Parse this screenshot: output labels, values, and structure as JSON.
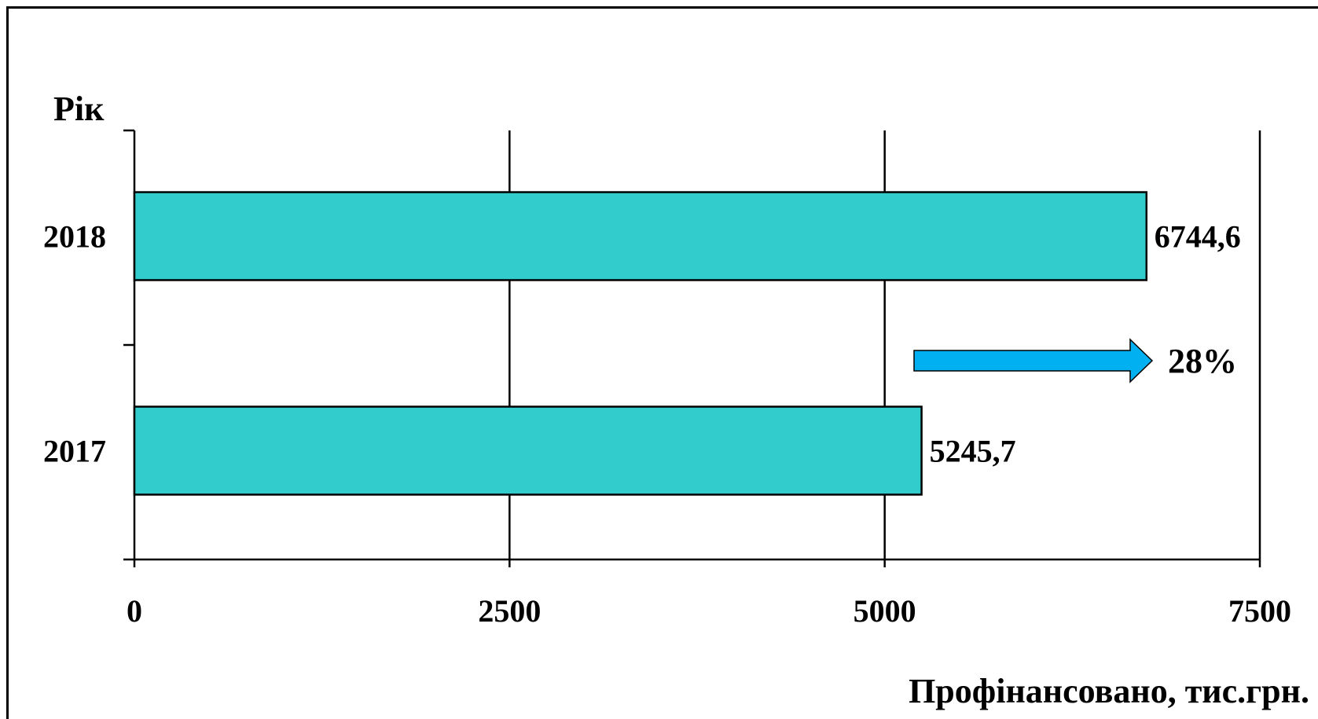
{
  "chart_data": {
    "type": "bar",
    "orientation": "horizontal",
    "categories": [
      "2018",
      "2017"
    ],
    "values": [
      6744.6,
      5245.7
    ],
    "value_labels": [
      "6744,6",
      "5245,7"
    ],
    "xlim": [
      0,
      7500
    ],
    "xticks": [
      "0",
      "2500",
      "5000",
      "7500"
    ],
    "xlabel": "Профінансовано, тис.грн.",
    "ylabel": "Рік",
    "grid": "vertical",
    "bar_color": "#33CCCC",
    "annotation": {
      "text": "28%",
      "color": "#1874FF",
      "arrow_color": "#00B0F0"
    }
  }
}
